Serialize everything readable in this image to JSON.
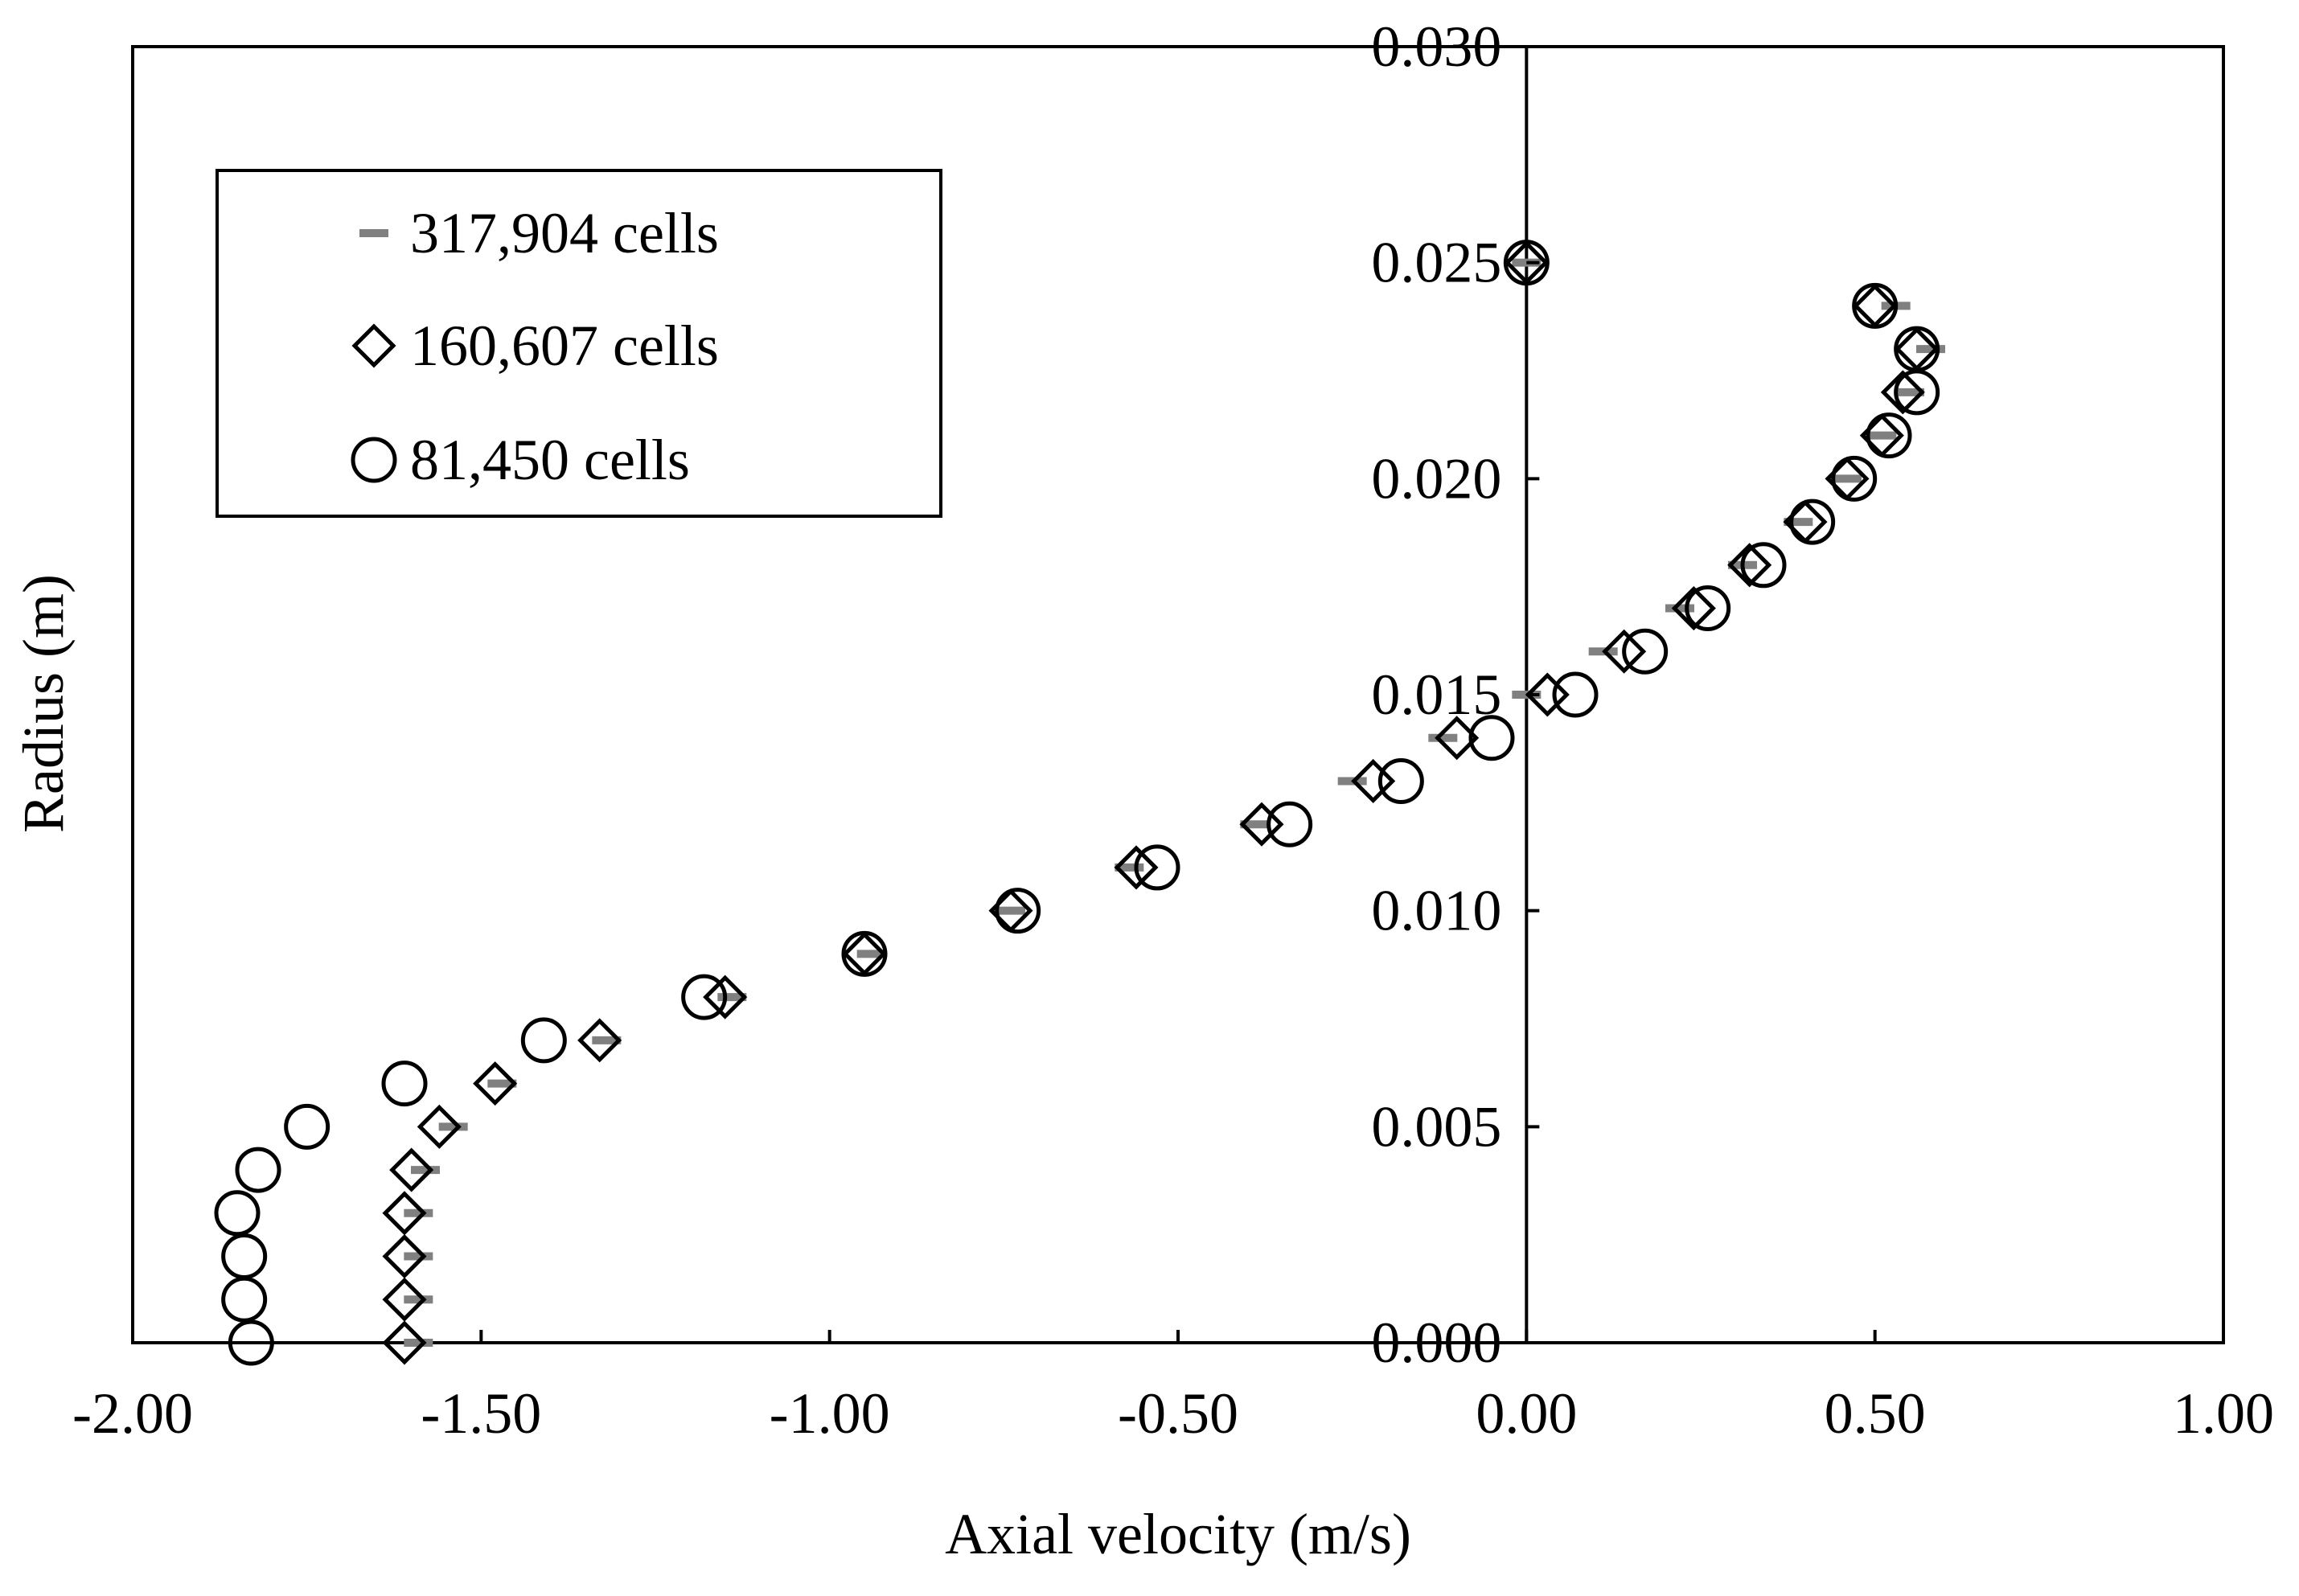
{
  "chart_data": {
    "type": "scatter",
    "title": "",
    "xlabel": "Axial velocity (m/s)",
    "ylabel": "Radius (m)",
    "xlim": [
      -2.0,
      1.0
    ],
    "ylim": [
      0.0,
      0.03
    ],
    "x_ticks": [
      -2.0,
      -1.5,
      -1.0,
      -0.5,
      0.0,
      0.5,
      1.0
    ],
    "x_tick_labels": [
      "-2.00",
      "-1.50",
      "-1.00",
      "-0.50",
      "0.00",
      "0.50",
      "1.00"
    ],
    "y_ticks": [
      0.0,
      0.005,
      0.01,
      0.015,
      0.02,
      0.025,
      0.03
    ],
    "y_tick_labels": [
      "0.000",
      "0.005",
      "0.010",
      "0.015",
      "0.020",
      "0.025",
      "0.030"
    ],
    "grid": false,
    "legend_position": "top-left",
    "series": [
      {
        "name": "317,904 cells",
        "marker": "dash",
        "color": "#808080",
        "x": [
          -1.59,
          -1.59,
          -1.59,
          -1.59,
          -1.58,
          -1.54,
          -1.47,
          -1.32,
          -1.14,
          -0.94,
          -0.74,
          -0.57,
          -0.39,
          -0.25,
          -0.12,
          0.0,
          0.11,
          0.22,
          0.31,
          0.39,
          0.46,
          0.51,
          0.55,
          0.58,
          0.53,
          0.0
        ],
        "y": [
          0.0,
          0.001,
          0.002,
          0.003,
          0.004,
          0.005,
          0.006,
          0.007,
          0.008,
          0.009,
          0.01,
          0.011,
          0.012,
          0.013,
          0.014,
          0.015,
          0.016,
          0.017,
          0.018,
          0.019,
          0.02,
          0.021,
          0.022,
          0.023,
          0.024,
          0.025
        ]
      },
      {
        "name": "160,607 cells",
        "marker": "diamond",
        "color": "#000000",
        "x": [
          -1.61,
          -1.61,
          -1.61,
          -1.61,
          -1.6,
          -1.56,
          -1.48,
          -1.33,
          -1.15,
          -0.95,
          -0.74,
          -0.56,
          -0.38,
          -0.22,
          -0.1,
          0.03,
          0.14,
          0.24,
          0.32,
          0.4,
          0.46,
          0.51,
          0.54,
          0.56,
          0.5,
          0.0
        ],
        "y": [
          0.0,
          0.001,
          0.002,
          0.003,
          0.004,
          0.005,
          0.006,
          0.007,
          0.008,
          0.009,
          0.01,
          0.011,
          0.012,
          0.013,
          0.014,
          0.015,
          0.016,
          0.017,
          0.018,
          0.019,
          0.02,
          0.021,
          0.022,
          0.023,
          0.024,
          0.025
        ]
      },
      {
        "name": "81,450 cells",
        "marker": "circle",
        "color": "#000000",
        "x": [
          -1.83,
          -1.84,
          -1.84,
          -1.85,
          -1.82,
          -1.75,
          -1.61,
          -1.41,
          -1.18,
          -0.95,
          -0.73,
          -0.53,
          -0.34,
          -0.18,
          -0.05,
          0.07,
          0.17,
          0.26,
          0.34,
          0.41,
          0.47,
          0.52,
          0.56,
          0.56,
          0.5,
          0.0
        ],
        "y": [
          0.0,
          0.001,
          0.002,
          0.003,
          0.004,
          0.005,
          0.006,
          0.007,
          0.008,
          0.009,
          0.01,
          0.011,
          0.012,
          0.013,
          0.014,
          0.015,
          0.016,
          0.017,
          0.018,
          0.019,
          0.02,
          0.021,
          0.022,
          0.023,
          0.024,
          0.025
        ]
      }
    ]
  }
}
